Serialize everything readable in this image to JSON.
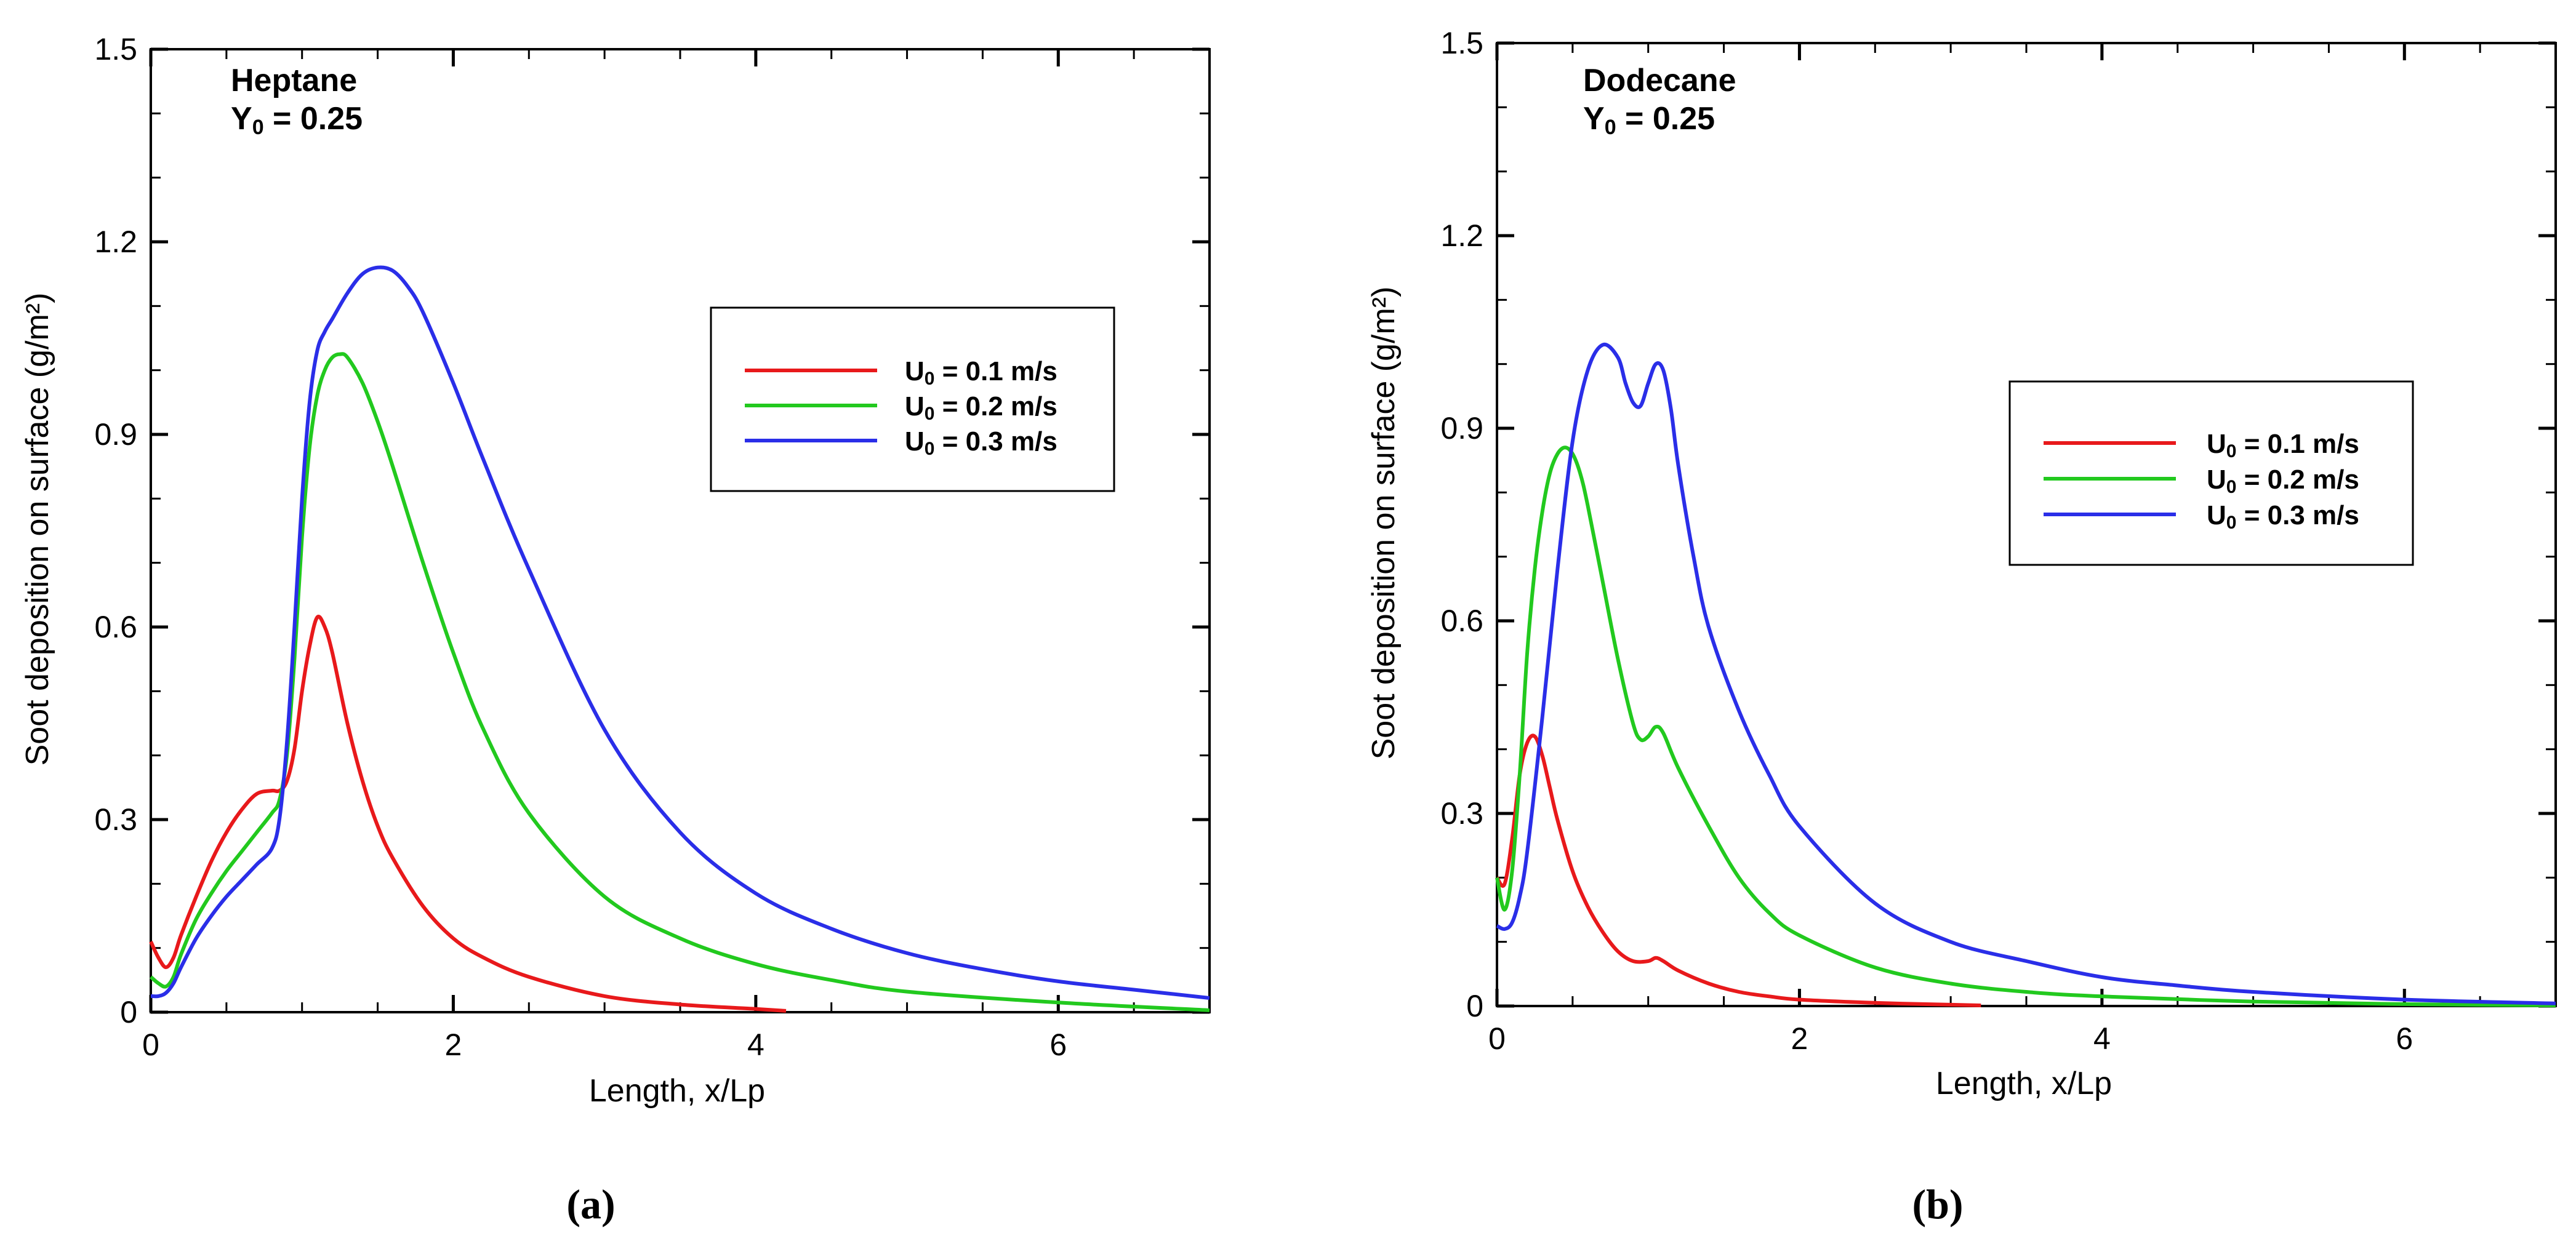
{
  "chart_data": [
    {
      "panel_id": "a",
      "type": "line",
      "caption": "(a)",
      "annotation": {
        "line1": "Heptane",
        "line2_prefix": "Y",
        "line2_sub": "0",
        "line2_suffix": " = 0.25"
      },
      "xlabel": "Length, x/Lp",
      "ylabel": "Soot deposition on surface (g/m²)",
      "xlim": [
        0,
        7
      ],
      "ylim": [
        0,
        1.5
      ],
      "xticks": [
        0,
        2,
        4,
        6
      ],
      "xtick_labels": [
        "0",
        "2",
        "4",
        "6"
      ],
      "yticks": [
        0,
        0.3,
        0.6,
        0.9,
        1.2,
        1.5
      ],
      "ytick_labels": [
        "0",
        "0.3",
        "0.6",
        "0.9",
        "1.2",
        "1.5"
      ],
      "grid": false,
      "legend_position": "right",
      "series": [
        {
          "name": "U0 = 0.1 m/s",
          "label_prefix": "U",
          "label_sub": "0",
          "label_suffix": " = 0.1 m/s",
          "color": "#e8191b",
          "x": [
            0,
            0.05,
            0.1,
            0.15,
            0.2,
            0.3,
            0.4,
            0.5,
            0.6,
            0.7,
            0.8,
            0.85,
            0.9,
            0.95,
            1.0,
            1.05,
            1.1,
            1.15,
            1.2,
            1.3,
            1.4,
            1.5,
            1.6,
            1.8,
            2.0,
            2.2,
            2.5,
            3.0,
            3.5,
            4.0,
            4.2
          ],
          "y": [
            0.11,
            0.085,
            0.07,
            0.085,
            0.12,
            0.18,
            0.235,
            0.28,
            0.315,
            0.34,
            0.345,
            0.345,
            0.36,
            0.41,
            0.5,
            0.57,
            0.615,
            0.6,
            0.56,
            0.45,
            0.36,
            0.29,
            0.24,
            0.165,
            0.115,
            0.085,
            0.055,
            0.025,
            0.012,
            0.005,
            0.002
          ]
        },
        {
          "name": "U0 = 0.2 m/s",
          "label_prefix": "U",
          "label_sub": "0",
          "label_suffix": " = 0.2 m/s",
          "color": "#22c91e",
          "x": [
            0,
            0.05,
            0.1,
            0.15,
            0.2,
            0.3,
            0.4,
            0.5,
            0.6,
            0.7,
            0.8,
            0.85,
            0.9,
            0.95,
            1.0,
            1.05,
            1.1,
            1.15,
            1.2,
            1.25,
            1.3,
            1.4,
            1.5,
            1.6,
            1.8,
            2.0,
            2.2,
            2.5,
            3.0,
            3.5,
            4.0,
            4.5,
            5.0,
            6.0,
            7.0
          ],
          "y": [
            0.055,
            0.045,
            0.04,
            0.055,
            0.09,
            0.145,
            0.185,
            0.22,
            0.25,
            0.28,
            0.31,
            0.33,
            0.4,
            0.55,
            0.74,
            0.88,
            0.96,
            1.0,
            1.02,
            1.025,
            1.02,
            0.98,
            0.92,
            0.85,
            0.7,
            0.56,
            0.44,
            0.31,
            0.18,
            0.115,
            0.075,
            0.05,
            0.032,
            0.015,
            0.003
          ]
        },
        {
          "name": "U0 = 0.3 m/s",
          "label_prefix": "U",
          "label_sub": "0",
          "label_suffix": " = 0.3 m/s",
          "color": "#2a2ee8",
          "x": [
            0,
            0.05,
            0.1,
            0.15,
            0.2,
            0.3,
            0.4,
            0.5,
            0.6,
            0.7,
            0.8,
            0.85,
            0.9,
            0.95,
            1.0,
            1.05,
            1.1,
            1.15,
            1.2,
            1.3,
            1.4,
            1.5,
            1.6,
            1.7,
            1.8,
            2.0,
            2.2,
            2.5,
            3.0,
            3.5,
            4.0,
            4.5,
            5.0,
            5.5,
            6.0,
            6.5,
            7.0
          ],
          "y": [
            0.025,
            0.025,
            0.03,
            0.045,
            0.07,
            0.115,
            0.15,
            0.18,
            0.205,
            0.23,
            0.255,
            0.3,
            0.42,
            0.6,
            0.8,
            0.95,
            1.03,
            1.06,
            1.08,
            1.12,
            1.15,
            1.16,
            1.155,
            1.13,
            1.09,
            0.98,
            0.86,
            0.69,
            0.44,
            0.28,
            0.185,
            0.13,
            0.092,
            0.067,
            0.048,
            0.035,
            0.022
          ]
        }
      ]
    },
    {
      "panel_id": "b",
      "type": "line",
      "caption": "(b)",
      "annotation": {
        "line1": "Dodecane",
        "line2_prefix": "Y",
        "line2_sub": "0",
        "line2_suffix": " = 0.25"
      },
      "xlabel": "Length, x/Lp",
      "ylabel": "Soot deposition on surface (g/m²)",
      "xlim": [
        0,
        7
      ],
      "ylim": [
        0,
        1.5
      ],
      "xticks": [
        0,
        2,
        4,
        6
      ],
      "xtick_labels": [
        "0",
        "2",
        "4",
        "6"
      ],
      "yticks": [
        0,
        0.3,
        0.6,
        0.9,
        1.2,
        1.5
      ],
      "ytick_labels": [
        "0",
        "0.3",
        "0.6",
        "0.9",
        "1.2",
        "1.5"
      ],
      "grid": false,
      "legend_position": "right",
      "series": [
        {
          "name": "U0 = 0.1 m/s",
          "label_prefix": "U",
          "label_sub": "0",
          "label_suffix": " = 0.1 m/s",
          "color": "#e8191b",
          "x": [
            0,
            0.05,
            0.1,
            0.15,
            0.2,
            0.25,
            0.3,
            0.35,
            0.4,
            0.5,
            0.6,
            0.7,
            0.8,
            0.9,
            1.0,
            1.05,
            1.1,
            1.2,
            1.4,
            1.6,
            1.8,
            2.0,
            2.5,
            3.0,
            3.2
          ],
          "y": [
            0.2,
            0.19,
            0.26,
            0.36,
            0.41,
            0.42,
            0.39,
            0.34,
            0.29,
            0.21,
            0.155,
            0.115,
            0.085,
            0.07,
            0.07,
            0.075,
            0.07,
            0.055,
            0.035,
            0.022,
            0.015,
            0.01,
            0.005,
            0.002,
            0.001
          ]
        },
        {
          "name": "U0 = 0.2 m/s",
          "label_prefix": "U",
          "label_sub": "0",
          "label_suffix": " = 0.2 m/s",
          "color": "#22c91e",
          "x": [
            0,
            0.05,
            0.1,
            0.15,
            0.2,
            0.25,
            0.3,
            0.35,
            0.4,
            0.45,
            0.5,
            0.55,
            0.6,
            0.7,
            0.8,
            0.9,
            0.95,
            1.0,
            1.05,
            1.1,
            1.2,
            1.4,
            1.6,
            1.8,
            2.0,
            2.5,
            3.0,
            3.5,
            4.0,
            5.0,
            6.0,
            7.0
          ],
          "y": [
            0.2,
            0.15,
            0.21,
            0.36,
            0.55,
            0.68,
            0.77,
            0.83,
            0.86,
            0.87,
            0.86,
            0.83,
            0.78,
            0.66,
            0.54,
            0.44,
            0.415,
            0.42,
            0.435,
            0.425,
            0.37,
            0.28,
            0.2,
            0.145,
            0.11,
            0.06,
            0.035,
            0.022,
            0.015,
            0.007,
            0.003,
            0.001
          ]
        },
        {
          "name": "U0 = 0.3 m/s",
          "label_prefix": "U",
          "label_sub": "0",
          "label_suffix": " = 0.3 m/s",
          "color": "#2a2ee8",
          "x": [
            0,
            0.05,
            0.1,
            0.15,
            0.2,
            0.3,
            0.4,
            0.5,
            0.6,
            0.7,
            0.8,
            0.85,
            0.9,
            0.95,
            1.0,
            1.05,
            1.1,
            1.15,
            1.2,
            1.3,
            1.4,
            1.6,
            1.8,
            2.0,
            2.5,
            3.0,
            3.5,
            4.0,
            4.5,
            5.0,
            6.0,
            7.0
          ],
          "y": [
            0.125,
            0.12,
            0.13,
            0.17,
            0.24,
            0.45,
            0.68,
            0.88,
            0.99,
            1.03,
            1.01,
            0.97,
            0.94,
            0.935,
            0.97,
            1.0,
            0.99,
            0.93,
            0.84,
            0.7,
            0.59,
            0.46,
            0.36,
            0.28,
            0.16,
            0.1,
            0.07,
            0.045,
            0.032,
            0.022,
            0.01,
            0.004
          ]
        }
      ]
    }
  ]
}
